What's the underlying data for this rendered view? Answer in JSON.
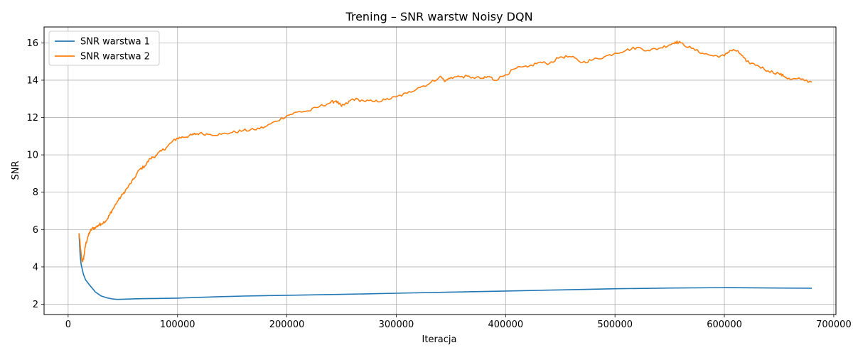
{
  "chart_data": {
    "type": "line",
    "title": "Trening – SNR warstw Noisy DQN",
    "xlabel": "Iteracja",
    "ylabel": "SNR",
    "xlim": [
      -22000,
      702000
    ],
    "ylim": [
      1.45,
      16.85
    ],
    "xticks": [
      0,
      100000,
      200000,
      300000,
      400000,
      500000,
      600000,
      700000
    ],
    "yticks": [
      2,
      4,
      6,
      8,
      10,
      12,
      14,
      16
    ],
    "grid": true,
    "legend_position": "top-left",
    "series": [
      {
        "name": "SNR warstwa 1",
        "color": "#1f77b4",
        "x": [
          10000,
          11000,
          12000,
          14000,
          16000,
          20000,
          25000,
          30000,
          35000,
          40000,
          45000,
          50000,
          60000,
          70000,
          80000,
          100000,
          120000,
          140000,
          160000,
          180000,
          200000,
          250000,
          300000,
          350000,
          400000,
          450000,
          500000,
          550000,
          600000,
          650000,
          680000
        ],
        "y": [
          5.8,
          4.6,
          4.1,
          3.6,
          3.3,
          3.0,
          2.65,
          2.45,
          2.35,
          2.29,
          2.26,
          2.27,
          2.29,
          2.3,
          2.31,
          2.33,
          2.37,
          2.41,
          2.44,
          2.46,
          2.48,
          2.53,
          2.59,
          2.65,
          2.71,
          2.77,
          2.83,
          2.87,
          2.89,
          2.87,
          2.86
        ]
      },
      {
        "name": "SNR warstwa 2",
        "color": "#ff7f0e",
        "x": [
          10000,
          11000,
          12000,
          13000,
          14000,
          15000,
          16000,
          18000,
          20000,
          22000,
          25000,
          28000,
          30000,
          35000,
          38000,
          40000,
          45000,
          50000,
          55000,
          60000,
          65000,
          70000,
          75000,
          80000,
          85000,
          90000,
          95000,
          100000,
          105000,
          110000,
          115000,
          120000,
          130000,
          140000,
          150000,
          160000,
          170000,
          180000,
          190000,
          200000,
          210000,
          220000,
          230000,
          240000,
          245000,
          250000,
          255000,
          260000,
          270000,
          280000,
          290000,
          300000,
          310000,
          320000,
          330000,
          340000,
          345000,
          350000,
          360000,
          370000,
          380000,
          385000,
          390000,
          400000,
          410000,
          420000,
          430000,
          440000,
          450000,
          460000,
          470000,
          480000,
          490000,
          500000,
          510000,
          520000,
          530000,
          540000,
          550000,
          555000,
          560000,
          570000,
          580000,
          590000,
          600000,
          605000,
          610000,
          615000,
          620000,
          630000,
          640000,
          650000,
          655000,
          660000,
          670000,
          680000
        ],
        "y": [
          5.8,
          5.2,
          4.6,
          4.3,
          4.4,
          4.8,
          5.2,
          5.6,
          5.9,
          6.05,
          6.1,
          6.25,
          6.3,
          6.5,
          6.8,
          7.0,
          7.5,
          7.9,
          8.3,
          8.7,
          9.2,
          9.4,
          9.8,
          9.95,
          10.2,
          10.4,
          10.7,
          10.9,
          10.95,
          11.0,
          11.1,
          11.15,
          11.1,
          11.1,
          11.2,
          11.3,
          11.35,
          11.5,
          11.8,
          12.1,
          12.3,
          12.35,
          12.6,
          12.8,
          12.9,
          12.6,
          12.75,
          13.0,
          12.9,
          12.85,
          12.95,
          13.1,
          13.3,
          13.6,
          13.8,
          14.2,
          13.95,
          14.15,
          14.2,
          14.15,
          14.1,
          14.2,
          14.0,
          14.3,
          14.65,
          14.7,
          14.95,
          14.9,
          15.25,
          15.25,
          14.95,
          15.1,
          15.25,
          15.45,
          15.6,
          15.75,
          15.6,
          15.7,
          15.9,
          16.05,
          16.0,
          15.7,
          15.45,
          15.3,
          15.3,
          15.6,
          15.6,
          15.4,
          15.0,
          14.8,
          14.5,
          14.35,
          14.2,
          14.05,
          14.05,
          13.9
        ]
      }
    ]
  }
}
